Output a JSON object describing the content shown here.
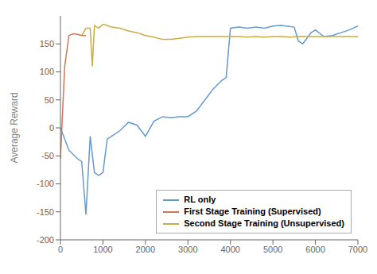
{
  "chart_data": {
    "type": "line",
    "ylabel": "Average Reward",
    "xlim": [
      0,
      7000
    ],
    "ylim": [
      -200,
      200
    ],
    "xticks": [
      0,
      1000,
      2000,
      3000,
      4000,
      5000,
      6000,
      7000
    ],
    "yticks": [
      -200,
      -150,
      -100,
      -50,
      0,
      50,
      100,
      150
    ],
    "grid": false,
    "legend": "lower right",
    "series": [
      {
        "name": "RL only",
        "color": "#6699cc",
        "x": [
          0,
          200,
          400,
          500,
          600,
          700,
          800,
          900,
          1000,
          1100,
          1200,
          1400,
          1600,
          1800,
          2000,
          2200,
          2400,
          2600,
          2800,
          3000,
          3200,
          3400,
          3600,
          3800,
          3900,
          4000,
          4200,
          4400,
          4600,
          4800,
          5000,
          5200,
          5500,
          5600,
          5700,
          5800,
          5900,
          6000,
          6200,
          6400,
          6600,
          6800,
          7000
        ],
        "values": [
          0,
          -40,
          -55,
          -60,
          -155,
          -15,
          -80,
          -85,
          -80,
          -20,
          -15,
          -5,
          10,
          5,
          -15,
          12,
          20,
          18,
          20,
          20,
          30,
          50,
          70,
          85,
          90,
          178,
          180,
          178,
          180,
          178,
          182,
          183,
          180,
          155,
          150,
          160,
          170,
          175,
          163,
          165,
          170,
          175,
          182
        ]
      },
      {
        "name": "First Stage Training (Supervised)",
        "color": "#cc7755",
        "x": [
          0,
          100,
          200,
          300,
          400,
          500,
          600
        ],
        "values": [
          -55,
          110,
          165,
          168,
          167,
          165,
          165
        ]
      },
      {
        "name": "Second Stage Training (Unsupervised)",
        "color": "#ccaa44",
        "x": [
          500,
          600,
          700,
          750,
          800,
          900,
          1000,
          1100,
          1200,
          1400,
          1600,
          1800,
          2000,
          2200,
          2400,
          2600,
          2800,
          3000,
          3200,
          3400,
          3600,
          3800,
          4000,
          4200,
          4400,
          4600,
          4800,
          5000,
          5200,
          5400,
          5600,
          5800,
          6000,
          6200,
          6400,
          6600,
          6800,
          7000
        ],
        "values": [
          165,
          178,
          178,
          110,
          183,
          178,
          185,
          183,
          180,
          178,
          173,
          170,
          165,
          162,
          158,
          158,
          160,
          162,
          163,
          163,
          163,
          163,
          163,
          163,
          162,
          163,
          162,
          163,
          163,
          162,
          163,
          163,
          163,
          163,
          163,
          163,
          163,
          163
        ]
      }
    ]
  }
}
